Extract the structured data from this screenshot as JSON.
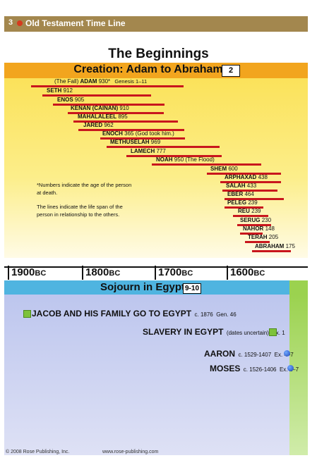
{
  "header": {
    "page_number": "3",
    "title": "Old Testament Time Line"
  },
  "main_title": "The Beginnings",
  "creation": {
    "title": "Creation: Adam to Abraham",
    "badge": "2",
    "patriarchs": [
      {
        "prefix": "(The Fall)",
        "name": "ADAM",
        "age": "930*",
        "suffix": "Genesis 1–11"
      },
      {
        "prefix": "",
        "name": "SETH",
        "age": "912",
        "suffix": ""
      },
      {
        "prefix": "",
        "name": "ENOS",
        "age": "905",
        "suffix": ""
      },
      {
        "prefix": "",
        "name": "KENAN (CAINAN)",
        "age": "910",
        "suffix": ""
      },
      {
        "prefix": "",
        "name": "MAHALALEEL",
        "age": "895",
        "suffix": ""
      },
      {
        "prefix": "",
        "name": "JARED",
        "age": "962",
        "suffix": ""
      },
      {
        "prefix": "",
        "name": "ENOCH",
        "age": "365",
        "suffix": "(God took him.)"
      },
      {
        "prefix": "",
        "name": "METHUSELAH",
        "age": "969",
        "suffix": ""
      },
      {
        "prefix": "",
        "name": "LAMECH",
        "age": "777",
        "suffix": ""
      },
      {
        "prefix": "",
        "name": "NOAH",
        "age": "950",
        "suffix": "(The Flood)"
      },
      {
        "prefix": "",
        "name": "SHEM",
        "age": "600",
        "suffix": ""
      },
      {
        "prefix": "",
        "name": "ARPHAXAD",
        "age": "438",
        "suffix": ""
      },
      {
        "prefix": "",
        "name": "SALAH",
        "age": "433",
        "suffix": ""
      },
      {
        "prefix": "",
        "name": "EBER",
        "age": "464",
        "suffix": ""
      },
      {
        "prefix": "",
        "name": "PELEG",
        "age": "239",
        "suffix": ""
      },
      {
        "prefix": "",
        "name": "REU",
        "age": "239",
        "suffix": ""
      },
      {
        "prefix": "",
        "name": "SERUG",
        "age": "230",
        "suffix": ""
      },
      {
        "prefix": "",
        "name": "NAHOR",
        "age": "148",
        "suffix": ""
      },
      {
        "prefix": "",
        "name": "TERAH",
        "age": "205",
        "suffix": ""
      },
      {
        "prefix": "",
        "name": "ABRAHAM",
        "age": "175",
        "suffix": ""
      }
    ],
    "note_1": "*Numbers indicate the age of the person at death.",
    "note_2": "The lines indicate the life span of the person in relationship to the others."
  },
  "timeline": {
    "years": [
      {
        "num": "1900",
        "era": "BC"
      },
      {
        "num": "1800",
        "era": "BC"
      },
      {
        "num": "1700",
        "era": "BC"
      },
      {
        "num": "1600",
        "era": "BC"
      }
    ]
  },
  "sojourn": {
    "title": "Sojourn in Egypt",
    "badge": "9-10",
    "events": [
      {
        "title": "JACOB AND HIS FAMILY GO TO EGYPT",
        "date": "c. 1876",
        "ref": "Gen. 46",
        "marker": "green-square-icon"
      },
      {
        "title": "SLAVERY IN EGYPT",
        "date": "(dates uncertain)",
        "ref": "Ex. 1",
        "marker": "green-square-icon"
      },
      {
        "title": "AARON",
        "date": "c. 1529-1407",
        "ref": "Ex. 4–7",
        "marker": "blue-dot-icon"
      },
      {
        "title": "MOSES",
        "date": "c. 1526-1406",
        "ref": "Ex. 2–7",
        "marker": "blue-dot-icon"
      }
    ]
  },
  "footer": {
    "copyright": "© 2008 Rose Publishing, Inc.",
    "url": "www.rose-publishing.com"
  },
  "colors": {
    "header_bar": "#a3874e",
    "creation_band": "#f2a51e",
    "lifespan_line": "#c8161d",
    "sojourn_band": "#4fb4e0",
    "sojourn_area": "#bdc6ee",
    "accent_green": "#9bd24f"
  }
}
